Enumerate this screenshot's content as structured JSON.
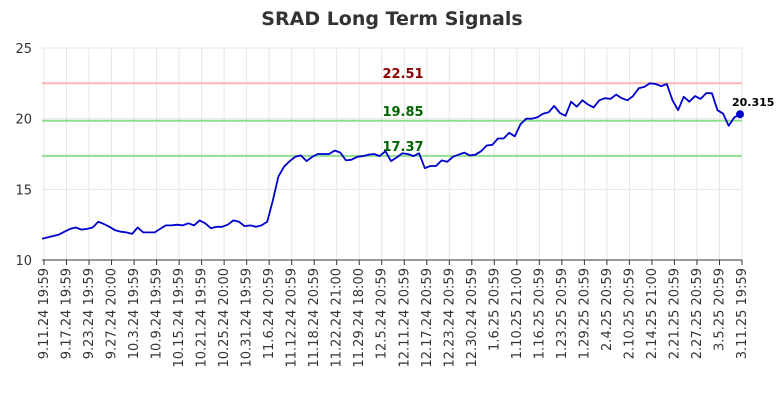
{
  "chart_data": {
    "type": "line",
    "title": "SRAD Long Term Signals",
    "xlabel": "",
    "ylabel": "",
    "ylim": [
      10,
      25
    ],
    "yticks": [
      10,
      15,
      20,
      25
    ],
    "grid": true,
    "x_tick_labels": [
      "9.11.24 19:59",
      "9.17.24 19:59",
      "9.23.24 19:59",
      "9.27.24 20:00",
      "10.3.24 19:59",
      "10.9.24 19:59",
      "10.15.24 19:59",
      "10.21.24 19:59",
      "10.25.24 20:00",
      "10.31.24 19:59",
      "11.6.24 20:59",
      "11.12.24 20:59",
      "11.18.24 20:59",
      "11.22.24 21:00",
      "11.29.24 18:00",
      "12.5.24 20:59",
      "12.11.24 20:59",
      "12.17.24 20:59",
      "12.23.24 20:59",
      "12.30.24 20:59",
      "1.6.25 20:59",
      "1.10.25 21:00",
      "1.16.25 20:59",
      "1.23.25 20:59",
      "1.29.25 20:59",
      "2.4.25 20:59",
      "2.10.25 20:59",
      "2.14.25 21:00",
      "2.21.25 20:59",
      "2.27.25 20:59",
      "3.5.25 20:59",
      "3.11.25 19:59"
    ],
    "series": [
      {
        "name": "",
        "color": "#0000cc",
        "values": [
          11.5,
          11.6,
          11.7,
          11.8,
          12.0,
          12.2,
          12.3,
          12.15,
          12.2,
          12.3,
          12.7,
          12.55,
          12.35,
          12.1,
          12.0,
          11.95,
          11.85,
          12.3,
          11.95,
          11.95,
          11.95,
          12.2,
          12.45,
          12.45,
          12.5,
          12.45,
          12.6,
          12.45,
          12.8,
          12.6,
          12.25,
          12.35,
          12.35,
          12.5,
          12.8,
          12.7,
          12.4,
          12.45,
          12.35,
          12.45,
          12.7,
          14.2,
          15.9,
          16.6,
          17.0,
          17.3,
          17.4,
          17.0,
          17.3,
          17.5,
          17.5,
          17.5,
          17.75,
          17.6,
          17.05,
          17.1,
          17.3,
          17.35,
          17.45,
          17.5,
          17.35,
          17.7,
          17.0,
          17.25,
          17.55,
          17.5,
          17.35,
          17.55,
          16.5,
          16.65,
          16.65,
          17.05,
          16.95,
          17.3,
          17.45,
          17.6,
          17.4,
          17.45,
          17.7,
          18.1,
          18.15,
          18.6,
          18.6,
          19.0,
          18.75,
          19.6,
          20.0,
          20.0,
          20.1,
          20.35,
          20.45,
          20.9,
          20.4,
          20.2,
          21.2,
          20.85,
          21.3,
          21.0,
          20.8,
          21.3,
          21.45,
          21.4,
          21.7,
          21.45,
          21.3,
          21.6,
          22.15,
          22.25,
          22.5,
          22.45,
          22.3,
          22.45,
          21.3,
          20.6,
          21.55,
          21.2,
          21.6,
          21.4,
          21.8,
          21.8,
          20.6,
          20.35,
          19.5,
          20.1,
          20.315
        ]
      }
    ],
    "reference_lines": [
      {
        "value": 22.51,
        "label": "22.51",
        "color": "#ffb3b3",
        "label_color": "#8b0000"
      },
      {
        "value": 19.85,
        "label": "19.85",
        "color": "#90e090",
        "label_color": "#006400"
      },
      {
        "value": 17.37,
        "label": "17.37",
        "color": "#90e090",
        "label_color": "#006400"
      }
    ],
    "last_point": {
      "value": 20.315,
      "label": "20.315"
    }
  }
}
